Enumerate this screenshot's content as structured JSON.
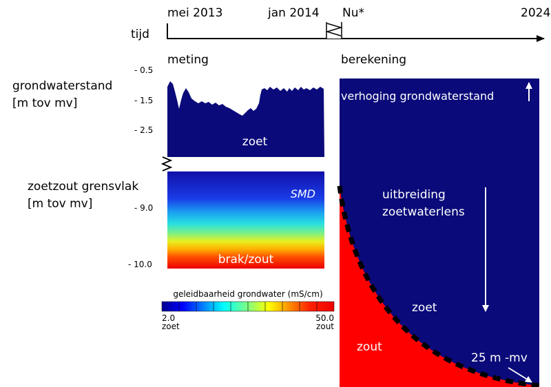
{
  "timeline": {
    "label": "tijd",
    "dates": [
      "mei 2013",
      "jan 2014",
      "Nu*",
      "2024"
    ]
  },
  "measurement": {
    "header": "meting",
    "groundwater": {
      "label_line1": "grondwaterstand",
      "label_line2": "[m tov mv]",
      "ticks": [
        "- 0.5",
        "- 1.5",
        "- 2.5"
      ],
      "text": "zoet",
      "fill_color": "#0a0a7a"
    },
    "interface": {
      "label_line1": "zoetzout grensvlak",
      "label_line2": "[m tov mv]",
      "ticks": [
        "- 9.0",
        "- 10.0"
      ],
      "method": "SMD",
      "bottom_text": "brak/zout"
    },
    "colorbar": {
      "title": "geleidbaarheid grondwater (mS/cm)",
      "min_value": "2.0",
      "min_label": "zoet",
      "max_value": "50.0",
      "max_label": "zout"
    }
  },
  "calculation": {
    "header": "berekening",
    "groundwater_rise": "verhoging grondwaterstand",
    "lens_line1": "uitbreiding",
    "lens_line2": "zoetwaterlens",
    "fresh": "zoet",
    "salt": "zout",
    "depth_label": "25 m -mv",
    "fresh_color": "#0a0a7a",
    "salt_color": "#ff0000"
  }
}
